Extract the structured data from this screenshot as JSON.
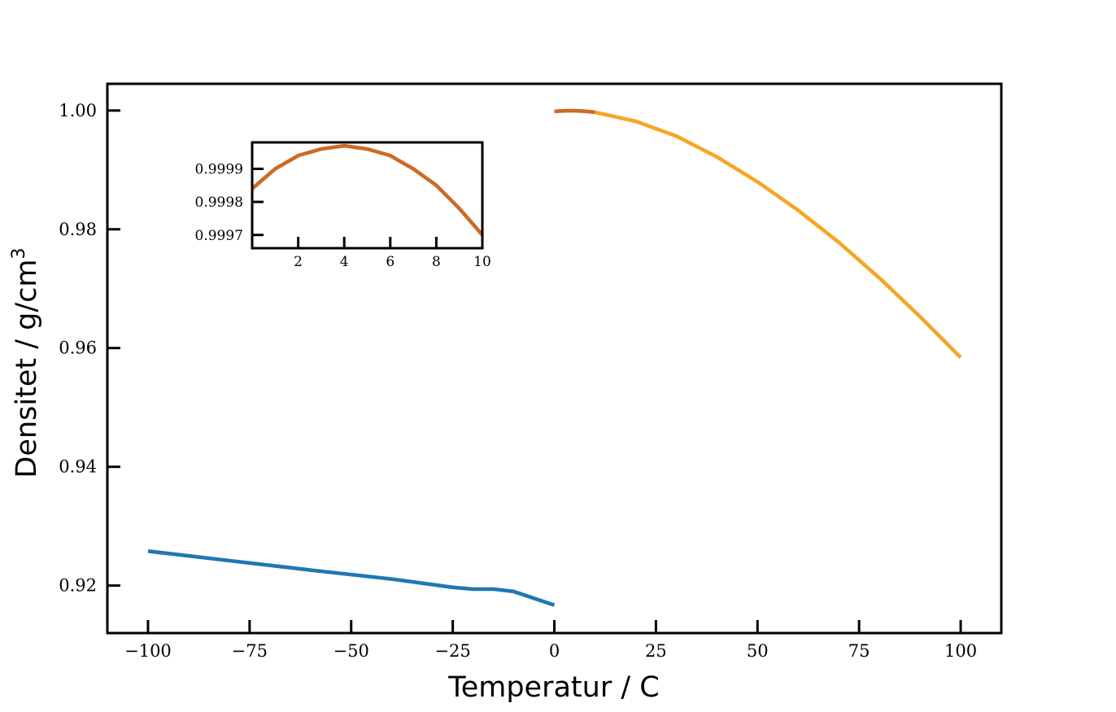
{
  "chart_data": [
    {
      "type": "line",
      "xlabel": "Temperatur / C",
      "ylabel": "Densitet / g/cm",
      "ylabel_superscript": "3",
      "xlim": [
        -110,
        110
      ],
      "ylim": [
        0.912,
        1.0045
      ],
      "xticks": [
        -100,
        -75,
        -50,
        -25,
        0,
        25,
        50,
        75,
        100
      ],
      "xtick_labels": [
        "−100",
        "−75",
        "−50",
        "−25",
        "0",
        "25",
        "50",
        "75",
        "100"
      ],
      "yticks": [
        0.92,
        0.94,
        0.96,
        0.98,
        1.0
      ],
      "ytick_labels": [
        "0.92",
        "0.94",
        "0.96",
        "0.98",
        "1.00"
      ],
      "grid": false,
      "legend": "none",
      "series": [
        {
          "color": "#1f77b4",
          "x": [
            -100,
            -80,
            -60,
            -40,
            -25,
            -20,
            -15,
            -10,
            0
          ],
          "y": [
            0.9258,
            0.9242,
            0.9226,
            0.9211,
            0.9197,
            0.9194,
            0.9194,
            0.919,
            0.9167
          ]
        },
        {
          "color": "#f5a623",
          "x": [
            10,
            20,
            30,
            40,
            50,
            60,
            70,
            80,
            90,
            100
          ],
          "y": [
            0.9997,
            0.9982,
            0.9957,
            0.9922,
            0.988,
            0.9832,
            0.9778,
            0.9718,
            0.9653,
            0.9584
          ]
        },
        {
          "color": "#cd6a25",
          "x": [
            0,
            1,
            2,
            3,
            4,
            5,
            6,
            7,
            8,
            9,
            10
          ],
          "y": [
            0.99984,
            0.9999,
            0.99994,
            0.99996,
            0.99997,
            0.99996,
            0.99994,
            0.9999,
            0.99985,
            0.99978,
            0.9997
          ]
        }
      ]
    },
    {
      "type": "line",
      "role": "inset",
      "xlim": [
        0,
        10
      ],
      "ylim": [
        0.99966,
        0.99998
      ],
      "xticks": [
        2,
        4,
        6,
        8,
        10
      ],
      "xtick_labels": [
        "2",
        "4",
        "6",
        "8",
        "10"
      ],
      "yticks": [
        0.9997,
        0.9998,
        0.9999
      ],
      "ytick_labels": [
        "0.9997",
        "0.9998",
        "0.9999"
      ],
      "grid": false,
      "series": [
        {
          "color": "#cd6a25",
          "x": [
            0,
            1,
            2,
            3,
            4,
            5,
            6,
            7,
            8,
            9,
            10
          ],
          "y": [
            0.99984,
            0.9999,
            0.99994,
            0.99996,
            0.99997,
            0.99996,
            0.99994,
            0.9999,
            0.99985,
            0.99978,
            0.9997
          ]
        }
      ]
    }
  ]
}
